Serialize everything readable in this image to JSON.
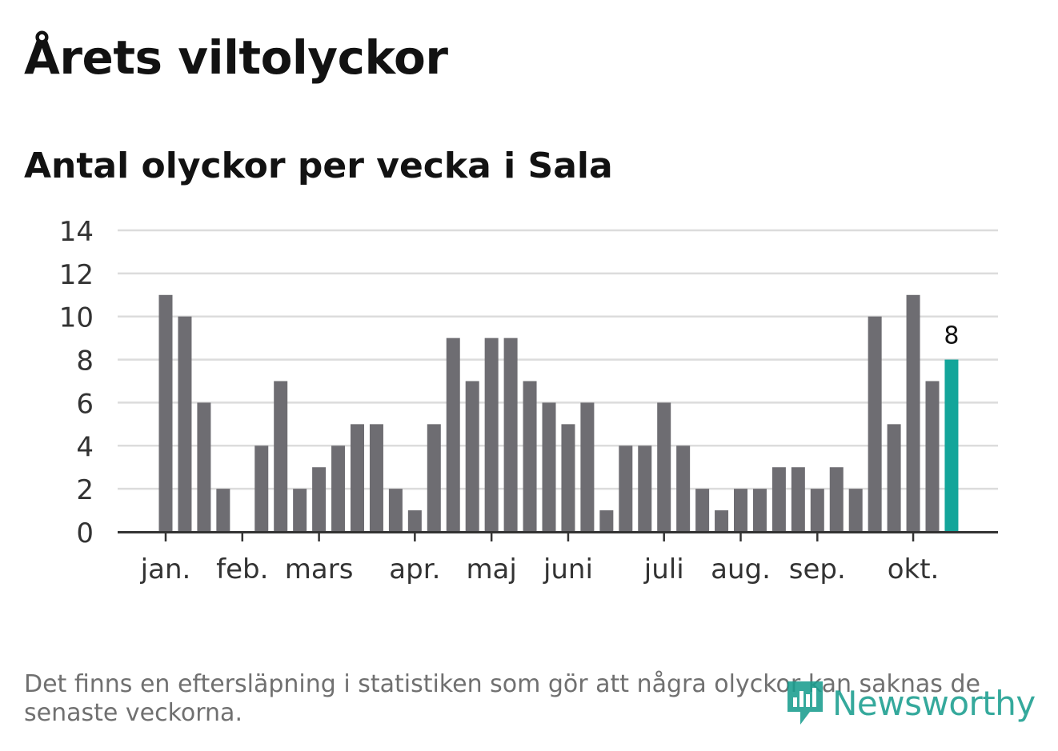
{
  "title": "Årets viltolyckor",
  "subtitle": "Antal olyckor per vecka i Sala",
  "footnote": "Det finns en eftersläpning i statistiken som gör att några olyckor kan saknas de senaste veckorna.",
  "logo": {
    "text": "Newsworthy",
    "icon": "newsworthy-logo-icon"
  },
  "colors": {
    "bar": "#6e6d72",
    "highlight": "#13a59a",
    "grid": "#dcdcdc",
    "axis": "#333333",
    "text": "#333333"
  },
  "chart_data": {
    "type": "bar",
    "title": "Antal olyckor per vecka i Sala",
    "xlabel": "",
    "ylabel": "",
    "ylim": [
      0,
      14
    ],
    "yticks": [
      "0",
      "2",
      "4",
      "6",
      "8",
      "10",
      "12",
      "14"
    ],
    "values": [
      11,
      10,
      6,
      2,
      0,
      4,
      7,
      2,
      3,
      4,
      5,
      5,
      2,
      1,
      5,
      9,
      7,
      9,
      9,
      7,
      6,
      5,
      6,
      1,
      4,
      4,
      6,
      4,
      2,
      1,
      2,
      2,
      3,
      3,
      2,
      3,
      2,
      10,
      5,
      11,
      7,
      8
    ],
    "highlight_last": true,
    "highlight_label": "8",
    "months": [
      {
        "label": "jan.",
        "week_index": 0
      },
      {
        "label": "feb.",
        "week_index": 4
      },
      {
        "label": "mars",
        "week_index": 8
      },
      {
        "label": "apr.",
        "week_index": 13
      },
      {
        "label": "maj",
        "week_index": 17
      },
      {
        "label": "juni",
        "week_index": 21
      },
      {
        "label": "juli",
        "week_index": 26
      },
      {
        "label": "aug.",
        "week_index": 30
      },
      {
        "label": "sep.",
        "week_index": 34
      },
      {
        "label": "okt.",
        "week_index": 39
      }
    ]
  }
}
